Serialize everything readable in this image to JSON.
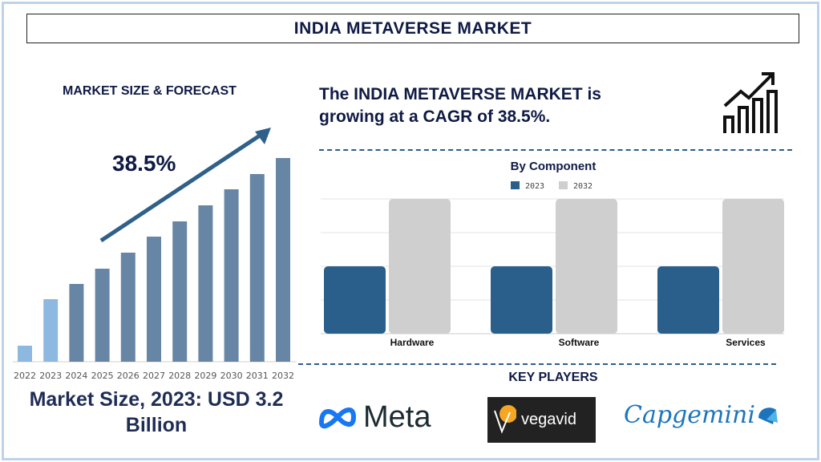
{
  "title": "INDIA METAVERSE MARKET",
  "left_panel": {
    "heading": "MARKET SIZE & FORECAST",
    "cagr_label": "38.5%",
    "market_size": "Market Size, 2023: USD 3.2 Billion"
  },
  "headline": "The INDIA METAVERSE MARKET is growing at a CAGR of 38.5%.",
  "key_players": {
    "heading": "KEY PLAYERS",
    "logos": [
      "Meta",
      "vegavid",
      "Capgemini"
    ]
  },
  "colors": {
    "forecast_bar": "#6786a6",
    "historic_bar": "#8db8e0",
    "series_2023": "#2a5f8c",
    "series_2032": "#cfcfcf",
    "text": "#0f1a45"
  },
  "chart_data": [
    {
      "type": "bar",
      "title": "",
      "categories": [
        "2022",
        "2023",
        "2024",
        "2025",
        "2026",
        "2027",
        "2028",
        "2029",
        "2030",
        "2031",
        "2032"
      ],
      "values": [
        20,
        78,
        97,
        116,
        136,
        156,
        175,
        195,
        215,
        234,
        254
      ],
      "value_units": "relative (no axis printed)",
      "highlighted": [
        "2022",
        "2023"
      ],
      "grid": false,
      "annotation": "38.5%"
    },
    {
      "type": "bar",
      "title": "By Component",
      "categories": [
        "Hardware",
        "Software",
        "Services"
      ],
      "series": [
        {
          "name": "2023",
          "values": [
            2,
            2,
            2
          ]
        },
        {
          "name": "2032",
          "values": [
            4,
            4,
            4
          ]
        }
      ],
      "value_units": "relative (no axis labels printed)",
      "ylim": [
        0,
        4
      ],
      "grid": true,
      "legend": "top-center"
    }
  ]
}
